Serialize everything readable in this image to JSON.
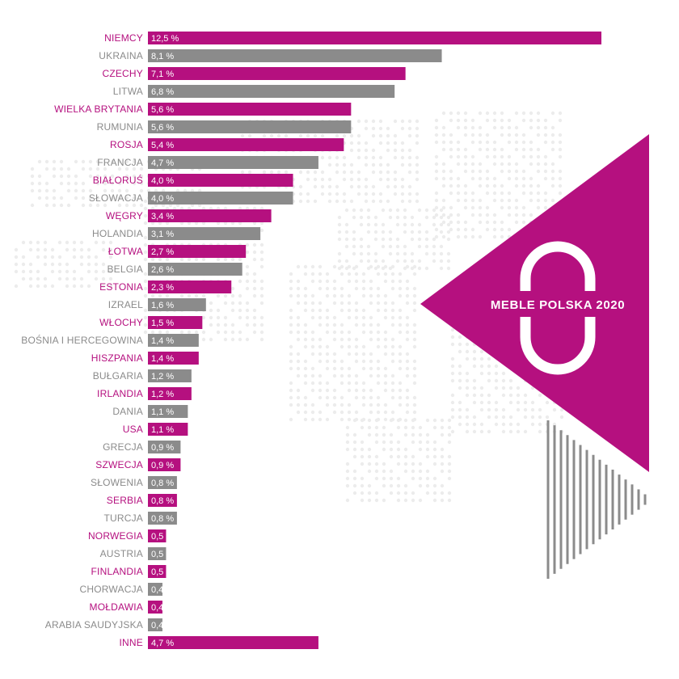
{
  "brand": {
    "text": "MEBLE POLSKA 2020",
    "logo_glyph": "0",
    "accent_color": "#b5107f",
    "neutral_color": "#8b8b8b"
  },
  "chart_data": {
    "type": "bar",
    "orientation": "horizontal",
    "title": "",
    "xlabel": "",
    "ylabel": "",
    "xlim": [
      0,
      12.5
    ],
    "grid": false,
    "legend": "none",
    "colors": [
      "#b5107f",
      "#8b8b8b"
    ],
    "categories": [
      "NIEMCY",
      "UKRAINA",
      "CZECHY",
      "LITWA",
      "WIELKA BRYTANIA",
      "RUMUNIA",
      "ROSJA",
      "FRANCJA",
      "BIAŁORUŚ",
      "SŁOWACJA",
      "WĘGRY",
      "HOLANDIA",
      "ŁOTWA",
      "BELGIA",
      "ESTONIA",
      "IZRAEL",
      "WŁOCHY",
      "BOŚNIA I HERCEGOWINA",
      "HISZPANIA",
      "BUŁGARIA",
      "IRLANDIA",
      "DANIA",
      "USA",
      "GRECJA",
      "SZWECJA",
      "SŁOWENIA",
      "SERBIA",
      "TURCJA",
      "NORWEGIA",
      "AUSTRIA",
      "FINLANDIA",
      "CHORWACJA",
      "MOŁDAWIA",
      "ARABIA SAUDYJSKA",
      "INNE"
    ],
    "values": [
      12.5,
      8.1,
      7.1,
      6.8,
      5.6,
      5.6,
      5.4,
      4.7,
      4.0,
      4.0,
      3.4,
      3.1,
      2.7,
      2.6,
      2.3,
      1.6,
      1.5,
      1.4,
      1.4,
      1.2,
      1.2,
      1.1,
      1.1,
      0.9,
      0.9,
      0.8,
      0.8,
      0.8,
      0.5,
      0.5,
      0.5,
      0.4,
      0.4,
      0.4,
      4.7
    ],
    "value_labels": [
      "12,5 %",
      "8,1 %",
      "7,1 %",
      "6,8 %",
      "5,6 %",
      "5,6 %",
      "5,4 %",
      "4,7 %",
      "4,0 %",
      "4,0 %",
      "3,4 %",
      "3,1 %",
      "2,7 %",
      "2,6 %",
      "2,3 %",
      "1,6 %",
      "1,5 %",
      "1,4 %",
      "1,4 %",
      "1,2 %",
      "1,2 %",
      "1,1 %",
      "1,1 %",
      "0,9 %",
      "0,9 %",
      "0,8 %",
      "0,8 %",
      "0,8 %",
      "0,5 %",
      "0,5 %",
      "0,5 %",
      "0,4 %",
      "0,4 %",
      "0,4 %",
      "4,7 %"
    ],
    "bar_colors": [
      "#b5107f",
      "#8b8b8b",
      "#b5107f",
      "#8b8b8b",
      "#b5107f",
      "#8b8b8b",
      "#b5107f",
      "#8b8b8b",
      "#b5107f",
      "#8b8b8b",
      "#b5107f",
      "#8b8b8b",
      "#b5107f",
      "#8b8b8b",
      "#b5107f",
      "#8b8b8b",
      "#b5107f",
      "#8b8b8b",
      "#b5107f",
      "#8b8b8b",
      "#b5107f",
      "#8b8b8b",
      "#b5107f",
      "#8b8b8b",
      "#b5107f",
      "#8b8b8b",
      "#b5107f",
      "#8b8b8b",
      "#b5107f",
      "#8b8b8b",
      "#b5107f",
      "#8b8b8b",
      "#b5107f",
      "#8b8b8b",
      "#b5107f"
    ]
  }
}
